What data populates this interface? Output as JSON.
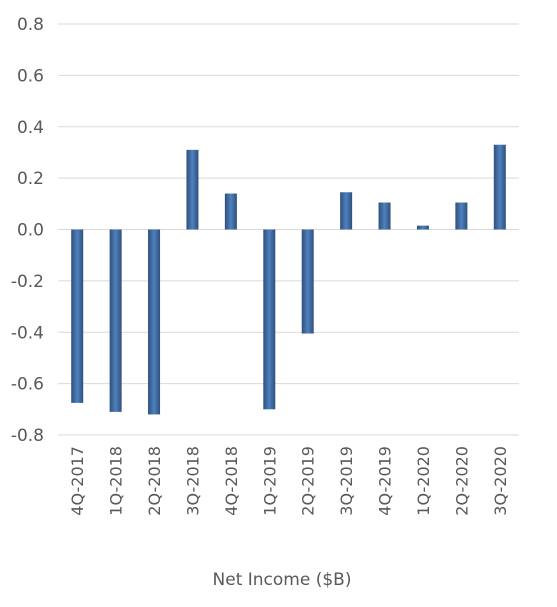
{
  "chart_data": {
    "type": "bar",
    "title": "",
    "xlabel": "Net Income ($B)",
    "ylabel": "",
    "categories": [
      "4Q-2017",
      "1Q-2018",
      "2Q-2018",
      "3Q-2018",
      "4Q-2018",
      "1Q-2019",
      "2Q-2019",
      "3Q-2019",
      "4Q-2019",
      "1Q-2020",
      "2Q-2020",
      "3Q-2020"
    ],
    "values": [
      -0.675,
      -0.71,
      -0.72,
      0.31,
      0.14,
      -0.7,
      -0.405,
      0.145,
      0.105,
      0.015,
      0.105,
      0.33
    ],
    "ylim": [
      -0.8,
      0.8
    ],
    "yticks": [
      "0.8",
      "0.6",
      "0.4",
      "0.2",
      "0.0",
      "-0.2",
      "-0.4",
      "-0.6",
      "-0.8"
    ],
    "grid": true,
    "legend": "none",
    "colors": {
      "bar_dark": "#2e4f7e",
      "bar_light": "#4f81bd",
      "grid": "#d9d9d9",
      "text": "#595959"
    }
  }
}
